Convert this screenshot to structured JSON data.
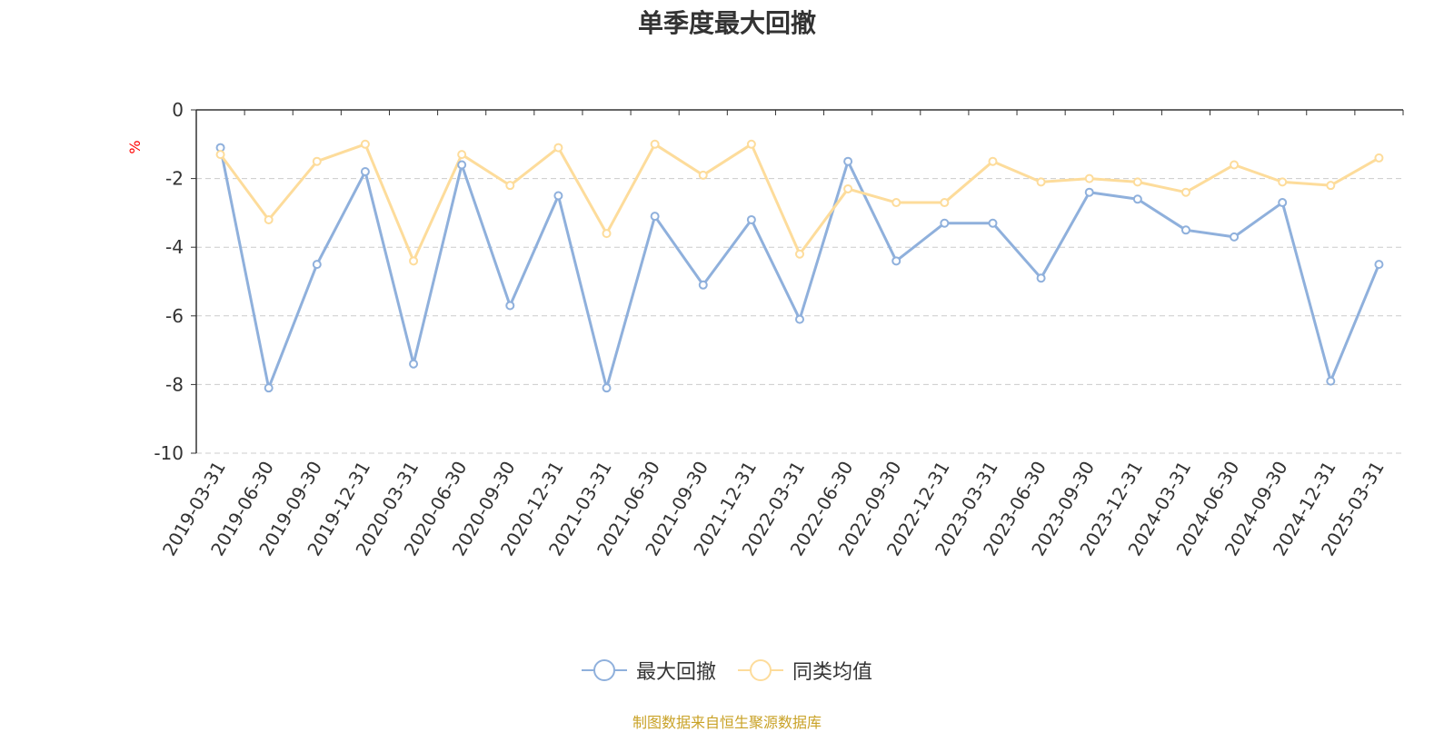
{
  "chart_data": {
    "type": "line",
    "title": "单季度最大回撤",
    "ylabel": "%",
    "ylim": [
      -10,
      0
    ],
    "yticks": [
      0,
      -2,
      -4,
      -6,
      -8,
      -10
    ],
    "grid": true,
    "legend_position": "bottom",
    "categories": [
      "2019-03-31",
      "2019-06-30",
      "2019-09-30",
      "2019-12-31",
      "2020-03-31",
      "2020-06-30",
      "2020-09-30",
      "2020-12-31",
      "2021-03-31",
      "2021-06-30",
      "2021-09-30",
      "2021-12-31",
      "2022-03-31",
      "2022-06-30",
      "2022-09-30",
      "2022-12-31",
      "2023-03-31",
      "2023-06-30",
      "2023-09-30",
      "2023-12-31",
      "2024-03-31",
      "2024-06-30",
      "2024-09-30",
      "2024-12-31",
      "2025-03-31"
    ],
    "series": [
      {
        "name": "最大回撤",
        "color": "#8fb0dc",
        "values": [
          -1.1,
          -8.1,
          -4.5,
          -1.8,
          -7.4,
          -1.6,
          -5.7,
          -2.5,
          -8.1,
          -3.1,
          -5.1,
          -3.2,
          -6.1,
          -1.5,
          -4.4,
          -3.3,
          -3.3,
          -4.9,
          -2.4,
          -2.6,
          -3.5,
          -3.7,
          -2.7,
          -7.9,
          -4.5
        ]
      },
      {
        "name": "同类均值",
        "color": "#fddc9b",
        "values": [
          -1.3,
          -3.2,
          -1.5,
          -1.0,
          -4.4,
          -1.3,
          -2.2,
          -1.1,
          -3.6,
          -1.0,
          -1.9,
          -1.0,
          -4.2,
          -2.3,
          -2.7,
          -2.7,
          -1.5,
          -2.1,
          -2.0,
          -2.1,
          -2.4,
          -1.6,
          -2.1,
          -2.2,
          -1.4
        ]
      }
    ]
  },
  "source_note": "制图数据来自恒生聚源数据库",
  "colors": {
    "axis": "#333333",
    "grid": "#cccccc",
    "ylabel": "#ff0000",
    "source": "#c9a227"
  }
}
